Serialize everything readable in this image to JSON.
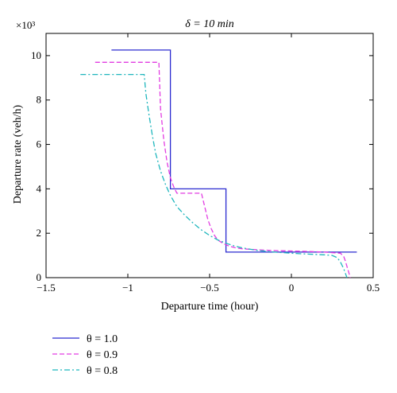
{
  "chart_data": {
    "type": "line",
    "title": "δ = 10 min",
    "xlabel": "Departure time (hour)",
    "ylabel": "Departure rate (veh/h)",
    "y_multiplier_label": "×10³",
    "xlim": [
      -1.5,
      0.5
    ],
    "ylim": [
      0,
      11000
    ],
    "xticks": [
      -1.5,
      -1,
      -0.5,
      0,
      0.5
    ],
    "xtick_labels": [
      "−1.5",
      "−1",
      "−0.5",
      "0",
      "0.5"
    ],
    "yticks": [
      0,
      2000,
      4000,
      6000,
      8000,
      10000
    ],
    "ytick_labels": [
      "0",
      "2",
      "4",
      "6",
      "8",
      "10"
    ],
    "grid": false,
    "legend_position": "below",
    "series": [
      {
        "name": "θ = 1.0",
        "color": "#2a2ad0",
        "dash": "solid",
        "x": [
          -1.1,
          -0.74,
          -0.74,
          -0.4,
          -0.4,
          0.4
        ],
        "y": [
          10250,
          10250,
          4000,
          4000,
          1150,
          1150
        ]
      },
      {
        "name": "θ = 0.9",
        "color": "#e23ce2",
        "dash": "dashed",
        "x": [
          -1.2,
          -0.81,
          -0.8,
          -0.78,
          -0.76,
          -0.74,
          -0.72,
          -0.7,
          -0.66,
          -0.61,
          -0.55,
          -0.53,
          -0.51,
          -0.49,
          -0.47,
          -0.45,
          -0.42,
          -0.38,
          -0.34,
          -0.3,
          -0.2,
          -0.1,
          0.0,
          0.1,
          0.2,
          0.3,
          0.32,
          0.33,
          0.34,
          0.35,
          0.36
        ],
        "y": [
          9700,
          9700,
          7600,
          6200,
          5200,
          4500,
          4100,
          3800,
          3800,
          3800,
          3800,
          3200,
          2600,
          2200,
          1900,
          1700,
          1550,
          1420,
          1340,
          1300,
          1250,
          1220,
          1200,
          1180,
          1150,
          1100,
          950,
          750,
          500,
          250,
          0
        ]
      },
      {
        "name": "θ = 0.8",
        "color": "#1fb6bd",
        "dash": "dashdot",
        "x": [
          -1.29,
          -0.9,
          -0.89,
          -0.87,
          -0.85,
          -0.83,
          -0.8,
          -0.77,
          -0.74,
          -0.7,
          -0.65,
          -0.6,
          -0.55,
          -0.5,
          -0.45,
          -0.4,
          -0.35,
          -0.3,
          -0.2,
          -0.1,
          0.0,
          0.1,
          0.2,
          0.25,
          0.28,
          0.3,
          0.32,
          0.34
        ],
        "y": [
          9150,
          9150,
          8300,
          7300,
          6400,
          5600,
          4800,
          4200,
          3700,
          3200,
          2800,
          2450,
          2150,
          1900,
          1700,
          1550,
          1430,
          1340,
          1220,
          1150,
          1100,
          1060,
          1030,
          1000,
          900,
          700,
          400,
          0
        ]
      }
    ]
  }
}
